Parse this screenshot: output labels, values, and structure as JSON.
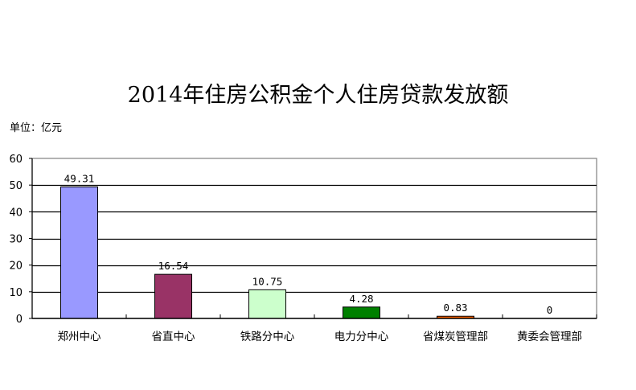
{
  "chart_data": {
    "type": "bar",
    "title": "2014年住房公积金个人住房贷款发放额",
    "unit_label": "单位：亿元",
    "xlabel": "",
    "ylabel": "亿元",
    "ylim": [
      0,
      60
    ],
    "yticks": [
      0,
      10,
      20,
      30,
      40,
      50,
      60
    ],
    "grid": true,
    "legend": null,
    "categories": [
      "郑州中心",
      "省直中心",
      "铁路分中心",
      "电力分中心",
      "省煤炭管理部",
      "黄委会管理部"
    ],
    "values": [
      49.31,
      16.54,
      10.75,
      4.28,
      0.83,
      0
    ],
    "value_labels": [
      "49.31",
      "16.54",
      "10.75",
      "4.28",
      "0.83",
      "0"
    ],
    "colors": [
      "#9999ff",
      "#993366",
      "#ccffcc",
      "#008000",
      "#ff6600",
      "#ffffff"
    ]
  }
}
